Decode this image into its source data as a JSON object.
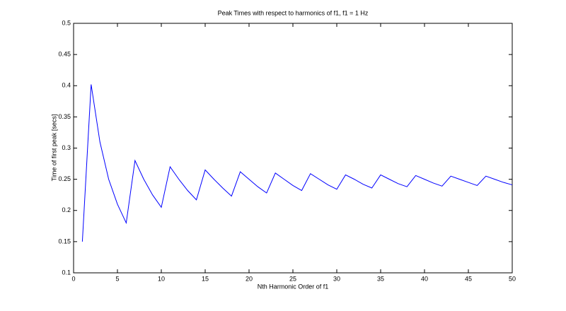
{
  "chart_data": {
    "type": "line",
    "title": "Peak Times with respect to harmonics of f1, f1 = 1 Hz",
    "x_label": "Nth Harmonic Order of f1",
    "y_label": "Time of first peak [secs]",
    "x": [
      1,
      2,
      3,
      4,
      5,
      6,
      7,
      8,
      9,
      10,
      11,
      12,
      13,
      14,
      15,
      16,
      17,
      18,
      19,
      20,
      21,
      22,
      23,
      24,
      25,
      26,
      27,
      28,
      29,
      30,
      31,
      32,
      33,
      34,
      35,
      36,
      37,
      38,
      39,
      40,
      41,
      42,
      43,
      44,
      45,
      46,
      47,
      48,
      49,
      50
    ],
    "series": [
      {
        "color": "#0000ff",
        "values": [
          0.15,
          0.402,
          0.31,
          0.25,
          0.21,
          0.18,
          0.28,
          0.25,
          0.225,
          0.205,
          0.27,
          0.25,
          0.232,
          0.217,
          0.265,
          0.25,
          0.236,
          0.223,
          0.262,
          0.25,
          0.238,
          0.228,
          0.26,
          0.25,
          0.24,
          0.232,
          0.259,
          0.25,
          0.241,
          0.234,
          0.257,
          0.25,
          0.242,
          0.236,
          0.257,
          0.25,
          0.243,
          0.238,
          0.256,
          0.25,
          0.244,
          0.239,
          0.255,
          0.25,
          0.245,
          0.24,
          0.255,
          0.25,
          0.245,
          0.241
        ]
      }
    ],
    "xlim": [
      0,
      50
    ],
    "xticks": [
      0,
      5,
      10,
      15,
      20,
      25,
      30,
      35,
      40,
      45,
      50
    ],
    "ylim": [
      0.1,
      0.5
    ],
    "yticks": [
      0.1,
      0.15,
      0.2,
      0.25,
      0.3,
      0.35,
      0.4,
      0.45,
      0.5
    ]
  }
}
